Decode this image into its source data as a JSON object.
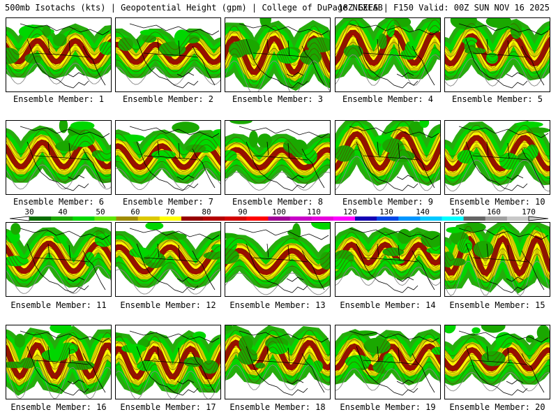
{
  "header": {
    "title": "500mb Isotachs (kts) | Geopotential Height (gpm) | College of DuPage NEXLAB",
    "run_info": "18Z GEFS | F150 Valid: 00Z SUN NOV 16 2025"
  },
  "panels": [
    {
      "label": "Ensemble Member: 1"
    },
    {
      "label": "Ensemble Member: 2"
    },
    {
      "label": "Ensemble Member: 3"
    },
    {
      "label": "Ensemble Member: 4"
    },
    {
      "label": "Ensemble Member: 5"
    },
    {
      "label": "Ensemble Member: 6"
    },
    {
      "label": "Ensemble Member: 7"
    },
    {
      "label": "Ensemble Member: 8"
    },
    {
      "label": "Ensemble Member: 9"
    },
    {
      "label": "Ensemble Member: 10"
    },
    {
      "label": "Ensemble Member: 11"
    },
    {
      "label": "Ensemble Member: 12"
    },
    {
      "label": "Ensemble Member: 13"
    },
    {
      "label": "Ensemble Member: 14"
    },
    {
      "label": "Ensemble Member: 15"
    },
    {
      "label": "Ensemble Member: 16"
    },
    {
      "label": "Ensemble Member: 17"
    },
    {
      "label": "Ensemble Member: 18"
    },
    {
      "label": "Ensemble Member: 19"
    },
    {
      "label": "Ensemble Member: 20"
    }
  ],
  "colorbar": {
    "labels": [
      "30",
      "40",
      "50",
      "60",
      "70",
      "80",
      "90",
      "100",
      "110",
      "120",
      "130",
      "140",
      "150",
      "160",
      "170"
    ],
    "colors": [
      "#0a6e00",
      "#1aa800",
      "#00d700",
      "#5fe600",
      "#a08c00",
      "#dcc800",
      "#ffff00",
      "#960000",
      "#b40000",
      "#d20000",
      "#ff0000",
      "#a00096",
      "#c800c8",
      "#e600dc",
      "#ff00ff",
      "#1400b4",
      "#0046e6",
      "#0096ff",
      "#00c8ff",
      "#00ffff",
      "#646464",
      "#a0a0a0",
      "#c8c8c8"
    ]
  }
}
